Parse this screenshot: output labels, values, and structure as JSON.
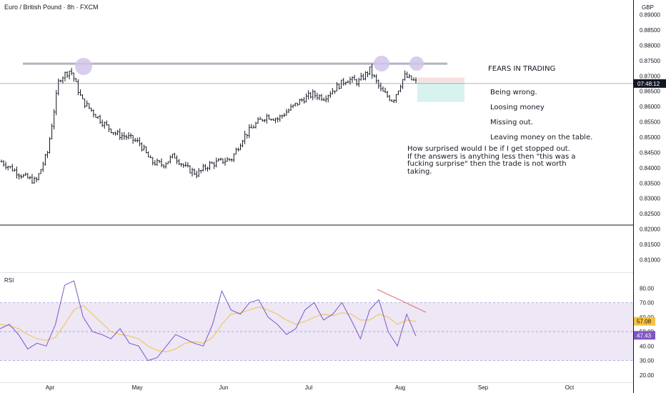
{
  "header": {
    "title": "Euro / British Pound · 8h · FXCM",
    "currency": "GBP"
  },
  "price_axis": {
    "ticks": [
      "0.89000",
      "0.88500",
      "0.88000",
      "0.87500",
      "0.87000",
      "0.86500",
      "0.86000",
      "0.85500",
      "0.85000",
      "0.84500",
      "0.84000",
      "0.83500",
      "0.83000",
      "0.82500",
      "0.82000",
      "0.81500",
      "0.81000"
    ],
    "countdown_label": "07:48:12"
  },
  "rsi_axis": {
    "ticks": [
      "80.00",
      "70.00",
      "60.00",
      "50.00",
      "40.00",
      "30.00",
      "20.00"
    ],
    "rsi_value_label": "47.43",
    "ma_value_label": "57.08"
  },
  "time_axis": {
    "ticks": [
      "Apr",
      "May",
      "Jun",
      "Jul",
      "Aug",
      "Sep",
      "Oct"
    ]
  },
  "panes": {
    "rsi_label": "RSI"
  },
  "annotations": {
    "fears_heading": "FEARS IN TRADING",
    "fears_items": [
      "Being wrong.",
      "Loosing money",
      "Missing out.",
      "Leaving money on the table."
    ],
    "surprise_text": "How surprised would I be if I get stopped out.\nIf the answers is anything less then \"this was a fucking surprise\" then  the trade is not worth taking."
  },
  "colors": {
    "bar": "#131722",
    "resistance_line": "#b2b5be",
    "highlight_circle": "#d1c4e9",
    "stop_zone": "#fcdede",
    "target_zone": "#d8f2ee",
    "rsi_line": "#7e57c2",
    "rsi_ma": "#f5c242",
    "rsi_band": "#ede7f6",
    "divergence_line": "#e57373",
    "countdown_bg": "#131722",
    "rsi_badge": "#7e57c2",
    "ma_badge": "#f5c242"
  },
  "chart_data": [
    {
      "type": "ohlc",
      "title": "Euro / British Pound · 8h · FXCM",
      "currency": "GBP",
      "x": [
        "Mar-22",
        "Mar-26",
        "Mar-30",
        "Apr-03",
        "Apr-07",
        "Apr-10",
        "Apr-13",
        "Apr-16",
        "Apr-20",
        "Apr-24",
        "Apr-28",
        "May-02",
        "May-06",
        "May-10",
        "May-14",
        "May-18",
        "May-22",
        "May-26",
        "May-30",
        "Jun-03",
        "Jun-07",
        "Jun-11",
        "Jun-15",
        "Jun-19",
        "Jun-23",
        "Jun-27",
        "Jul-01",
        "Jul-05",
        "Jul-09",
        "Jul-13",
        "Jul-17",
        "Jul-21",
        "Jul-25",
        "Jul-28",
        "Aug-01",
        "Aug-04",
        "Aug-07"
      ],
      "close_approx": [
        0.842,
        0.8395,
        0.837,
        0.8355,
        0.845,
        0.869,
        0.872,
        0.862,
        0.858,
        0.854,
        0.851,
        0.85,
        0.848,
        0.842,
        0.841,
        0.844,
        0.84,
        0.838,
        0.841,
        0.842,
        0.843,
        0.85,
        0.854,
        0.857,
        0.856,
        0.859,
        0.862,
        0.864,
        0.863,
        0.866,
        0.869,
        0.868,
        0.872,
        0.865,
        0.862,
        0.87,
        0.868
      ],
      "ylim": [
        0.81,
        0.892
      ],
      "resistance_level": 0.874,
      "position": {
        "entry": 0.868,
        "stop": 0.8695,
        "target": 0.8615
      },
      "x_ticks": [
        "Apr",
        "May",
        "Jun",
        "Jul",
        "Aug",
        "Sep",
        "Oct"
      ]
    },
    {
      "type": "line",
      "title": "RSI",
      "series": [
        {
          "values": [
            52,
            55,
            48,
            38,
            42,
            40,
            55,
            82,
            85,
            60,
            50,
            48,
            45,
            52,
            42,
            40,
            30,
            32,
            40,
            48,
            45,
            42,
            40,
            55,
            78,
            65,
            62,
            70,
            72,
            60,
            55,
            48,
            52,
            65,
            70,
            58,
            62,
            70,
            58,
            45,
            65,
            72,
            50,
            40,
            62,
            47
          ]
        },
        {
          "values": [
            55,
            54,
            52,
            48,
            45,
            44,
            46,
            55,
            65,
            68,
            62,
            56,
            50,
            48,
            47,
            45,
            40,
            37,
            36,
            38,
            42,
            43,
            42,
            46,
            55,
            62,
            63,
            65,
            67,
            65,
            62,
            58,
            55,
            57,
            60,
            62,
            61,
            63,
            62,
            58,
            58,
            62,
            60,
            55,
            58,
            57
          ]
        }
      ],
      "ylim": [
        18,
        87
      ],
      "levels": [
        70,
        50,
        30
      ],
      "last_rsi": 47.43,
      "last_ma": 57.08
    }
  ]
}
